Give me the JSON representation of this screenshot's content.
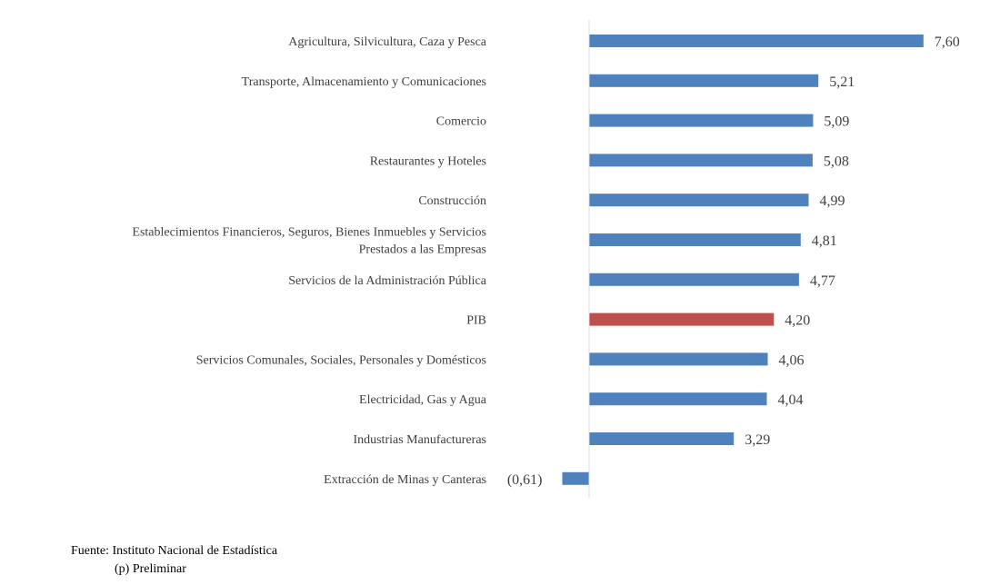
{
  "chart_data": {
    "type": "bar",
    "orientation": "horizontal",
    "title": "",
    "xlabel": "",
    "ylabel": "",
    "xlim": [
      -0.61,
      7.6
    ],
    "grid": false,
    "legend": "none",
    "negative_value_format": "parentheses",
    "colors": {
      "default": "#4F81BD",
      "highlight": "#C0504D",
      "axis": "#D9D9D9",
      "text": "#404040"
    },
    "categories": [
      "Agricultura, Silvicultura, Caza y Pesca",
      "Transporte, Almacenamiento y Comunicaciones",
      "Comercio",
      "Restaurantes y Hoteles",
      "Construcción",
      "Establecimientos Financieros, Seguros, Bienes Inmuebles y Servicios Prestados a las Empresas",
      "Servicios de la Administración Pública",
      "PIB",
      "Servicios Comunales, Sociales, Personales y Domésticos",
      "Electricidad, Gas y Agua",
      "Industrias Manufactureras",
      "Extracción de Minas y Canteras"
    ],
    "category_lines": [
      [
        "Agricultura, Silvicultura, Caza y Pesca"
      ],
      [
        "Transporte, Almacenamiento y Comunicaciones"
      ],
      [
        "Comercio"
      ],
      [
        "Restaurantes y Hoteles"
      ],
      [
        "Construcción"
      ],
      [
        "Establecimientos Financieros, Seguros, Bienes Inmuebles y Servicios",
        "Prestados a las Empresas"
      ],
      [
        "Servicios de la Administración Pública"
      ],
      [
        "PIB"
      ],
      [
        "Servicios Comunales, Sociales, Personales y Domésticos"
      ],
      [
        "Electricidad, Gas y Agua"
      ],
      [
        "Industrias Manufactureras"
      ],
      [
        "Extracción de Minas y Canteras"
      ]
    ],
    "values": [
      7.6,
      5.21,
      5.09,
      5.08,
      4.99,
      4.81,
      4.77,
      4.2,
      4.06,
      4.04,
      3.29,
      -0.61
    ],
    "data_labels": [
      "7,60",
      "5,21",
      "5,09",
      "5,08",
      "4,99",
      "4,81",
      "4,77",
      "4,20",
      "4,06",
      "4,04",
      "3,29",
      "(0,61)"
    ],
    "highlight_index": 7
  },
  "notes": {
    "source": "Fuente: Instituto Nacional de Estadística",
    "preliminary": "(p) Preliminar"
  }
}
